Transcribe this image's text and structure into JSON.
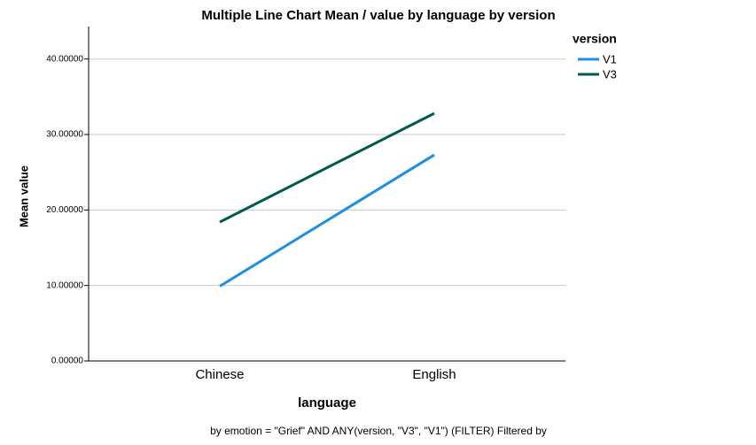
{
  "chart_data": {
    "type": "line",
    "title": "Multiple Line Chart Mean /  value by language by version",
    "x_label": "language",
    "y_label": "Mean value",
    "footnote": "by emotion = \"Grief\" AND ANY(version, \"V3\", \"V1\") (FILTER) Filtered by",
    "legend_title": "version",
    "categories": [
      "Chinese",
      "English"
    ],
    "series": [
      {
        "name": "V1",
        "color": "#1f8fe0",
        "values": [
          9.9,
          27.3
        ]
      },
      {
        "name": "V3",
        "color": "#005a4e",
        "values": [
          18.4,
          32.8
        ]
      }
    ],
    "ylim": [
      0,
      44.3
    ],
    "yticks": [
      {
        "value": 0,
        "label": "0.00000"
      },
      {
        "value": 10,
        "label": "10.00000"
      },
      {
        "value": 20,
        "label": "20.00000"
      },
      {
        "value": 30,
        "label": "30.00000"
      },
      {
        "value": 40,
        "label": "40.00000"
      }
    ],
    "grid": true
  }
}
